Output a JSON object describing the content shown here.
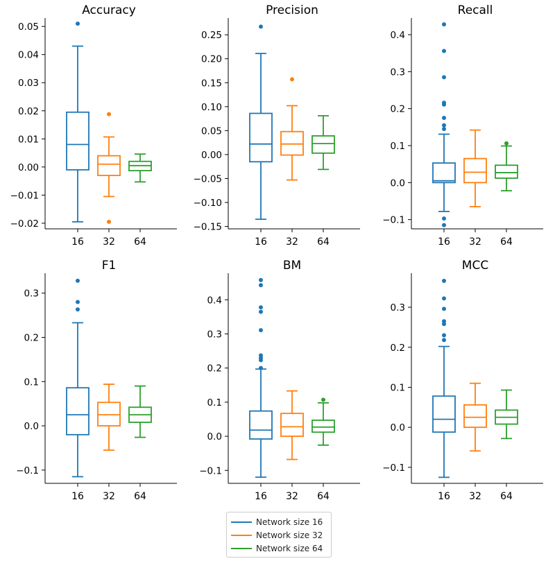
{
  "chart_data": [
    {
      "type": "box",
      "title": "Accuracy",
      "categories": [
        "16",
        "32",
        "64"
      ],
      "ylim": [
        -0.022,
        0.053
      ],
      "yticks": [
        -0.02,
        -0.01,
        0.0,
        0.01,
        0.02,
        0.03,
        0.04,
        0.05
      ],
      "ytick_labels": [
        "−0.02",
        "−0.01",
        "0.00",
        "0.01",
        "0.02",
        "0.03",
        "0.04",
        "0.05"
      ],
      "boxes": [
        {
          "whislo": -0.0195,
          "q1": -0.001,
          "med": 0.008,
          "q3": 0.0195,
          "whishi": 0.043,
          "fliers": [
            0.051
          ]
        },
        {
          "whislo": -0.0105,
          "q1": -0.003,
          "med": 0.001,
          "q3": 0.004,
          "whishi": 0.0107,
          "fliers": [
            0.0188,
            -0.0195
          ]
        },
        {
          "whislo": -0.0053,
          "q1": -0.0013,
          "med": 0.0005,
          "q3": 0.002,
          "whishi": 0.0046,
          "fliers": []
        }
      ]
    },
    {
      "type": "box",
      "title": "Precision",
      "categories": [
        "16",
        "32",
        "64"
      ],
      "ylim": [
        -0.155,
        0.285
      ],
      "yticks": [
        -0.15,
        -0.1,
        -0.05,
        0.0,
        0.05,
        0.1,
        0.15,
        0.2,
        0.25
      ],
      "ytick_labels": [
        "−0.15",
        "−0.10",
        "−0.05",
        "0.00",
        "0.05",
        "0.10",
        "0.15",
        "0.20",
        "0.25"
      ],
      "boxes": [
        {
          "whislo": -0.135,
          "q1": -0.015,
          "med": 0.022,
          "q3": 0.086,
          "whishi": 0.211,
          "fliers": [
            0.267
          ]
        },
        {
          "whislo": -0.053,
          "q1": -0.001,
          "med": 0.022,
          "q3": 0.048,
          "whishi": 0.102,
          "fliers": [
            0.157
          ]
        },
        {
          "whislo": -0.031,
          "q1": 0.003,
          "med": 0.023,
          "q3": 0.039,
          "whishi": 0.081,
          "fliers": []
        }
      ]
    },
    {
      "type": "box",
      "title": "Recall",
      "categories": [
        "16",
        "32",
        "64"
      ],
      "ylim": [
        -0.125,
        0.445
      ],
      "yticks": [
        -0.1,
        0.0,
        0.1,
        0.2,
        0.3,
        0.4
      ],
      "ytick_labels": [
        "−0.1",
        "0.0",
        "0.1",
        "0.2",
        "0.3",
        "0.4"
      ],
      "boxes": [
        {
          "whislo": -0.078,
          "q1": 0.0,
          "med": 0.005,
          "q3": 0.053,
          "whishi": 0.131,
          "fliers": [
            0.428,
            0.356,
            0.285,
            0.216,
            0.211,
            0.175,
            0.155,
            0.145,
            -0.097,
            -0.115
          ]
        },
        {
          "whislo": -0.065,
          "q1": 0.0,
          "med": 0.028,
          "q3": 0.065,
          "whishi": 0.142,
          "fliers": []
        },
        {
          "whislo": -0.022,
          "q1": 0.012,
          "med": 0.027,
          "q3": 0.047,
          "whishi": 0.099,
          "fliers": [
            0.106
          ]
        }
      ]
    },
    {
      "type": "box",
      "title": "F1",
      "categories": [
        "16",
        "32",
        "64"
      ],
      "ylim": [
        -0.13,
        0.345
      ],
      "yticks": [
        -0.1,
        0.0,
        0.1,
        0.2,
        0.3
      ],
      "ytick_labels": [
        "−0.1",
        "0.0",
        "0.1",
        "0.2",
        "0.3"
      ],
      "boxes": [
        {
          "whislo": -0.115,
          "q1": -0.02,
          "med": 0.025,
          "q3": 0.086,
          "whishi": 0.233,
          "fliers": [
            0.328,
            0.28,
            0.263
          ]
        },
        {
          "whislo": -0.055,
          "q1": 0.0,
          "med": 0.025,
          "q3": 0.053,
          "whishi": 0.094,
          "fliers": []
        },
        {
          "whislo": -0.026,
          "q1": 0.008,
          "med": 0.025,
          "q3": 0.042,
          "whishi": 0.09,
          "fliers": []
        }
      ]
    },
    {
      "type": "box",
      "title": "BM",
      "categories": [
        "16",
        "32",
        "64"
      ],
      "ylim": [
        -0.138,
        0.478
      ],
      "yticks": [
        -0.1,
        0.0,
        0.1,
        0.2,
        0.3,
        0.4
      ],
      "ytick_labels": [
        "−0.1",
        "0.0",
        "0.1",
        "0.2",
        "0.3",
        "0.4"
      ],
      "boxes": [
        {
          "whislo": -0.12,
          "q1": -0.008,
          "med": 0.018,
          "q3": 0.074,
          "whishi": 0.197,
          "fliers": [
            0.458,
            0.443,
            0.378,
            0.365,
            0.311,
            0.237,
            0.23,
            0.223,
            0.2
          ]
        },
        {
          "whislo": -0.068,
          "q1": 0.0,
          "med": 0.028,
          "q3": 0.067,
          "whishi": 0.133,
          "fliers": []
        },
        {
          "whislo": -0.026,
          "q1": 0.012,
          "med": 0.027,
          "q3": 0.047,
          "whishi": 0.098,
          "fliers": [
            0.107
          ]
        }
      ]
    },
    {
      "type": "box",
      "title": "MCC",
      "categories": [
        "16",
        "32",
        "64"
      ],
      "ylim": [
        -0.14,
        0.385
      ],
      "yticks": [
        -0.1,
        0.0,
        0.1,
        0.2,
        0.3
      ],
      "ytick_labels": [
        "−0.1",
        "0.0",
        "0.1",
        "0.2",
        "0.3"
      ],
      "boxes": [
        {
          "whislo": -0.125,
          "q1": -0.012,
          "med": 0.02,
          "q3": 0.078,
          "whishi": 0.202,
          "fliers": [
            0.366,
            0.322,
            0.296,
            0.265,
            0.258,
            0.23,
            0.218
          ]
        },
        {
          "whislo": -0.059,
          "q1": 0.0,
          "med": 0.025,
          "q3": 0.056,
          "whishi": 0.11,
          "fliers": []
        },
        {
          "whislo": -0.028,
          "q1": 0.008,
          "med": 0.025,
          "q3": 0.043,
          "whishi": 0.093,
          "fliers": []
        }
      ]
    }
  ],
  "series_colors": [
    "#1f77b4",
    "#ff7f0e",
    "#2ca02c"
  ],
  "legend": {
    "entries": [
      "Network size 16",
      "Network size 32",
      "Network size 64"
    ]
  }
}
